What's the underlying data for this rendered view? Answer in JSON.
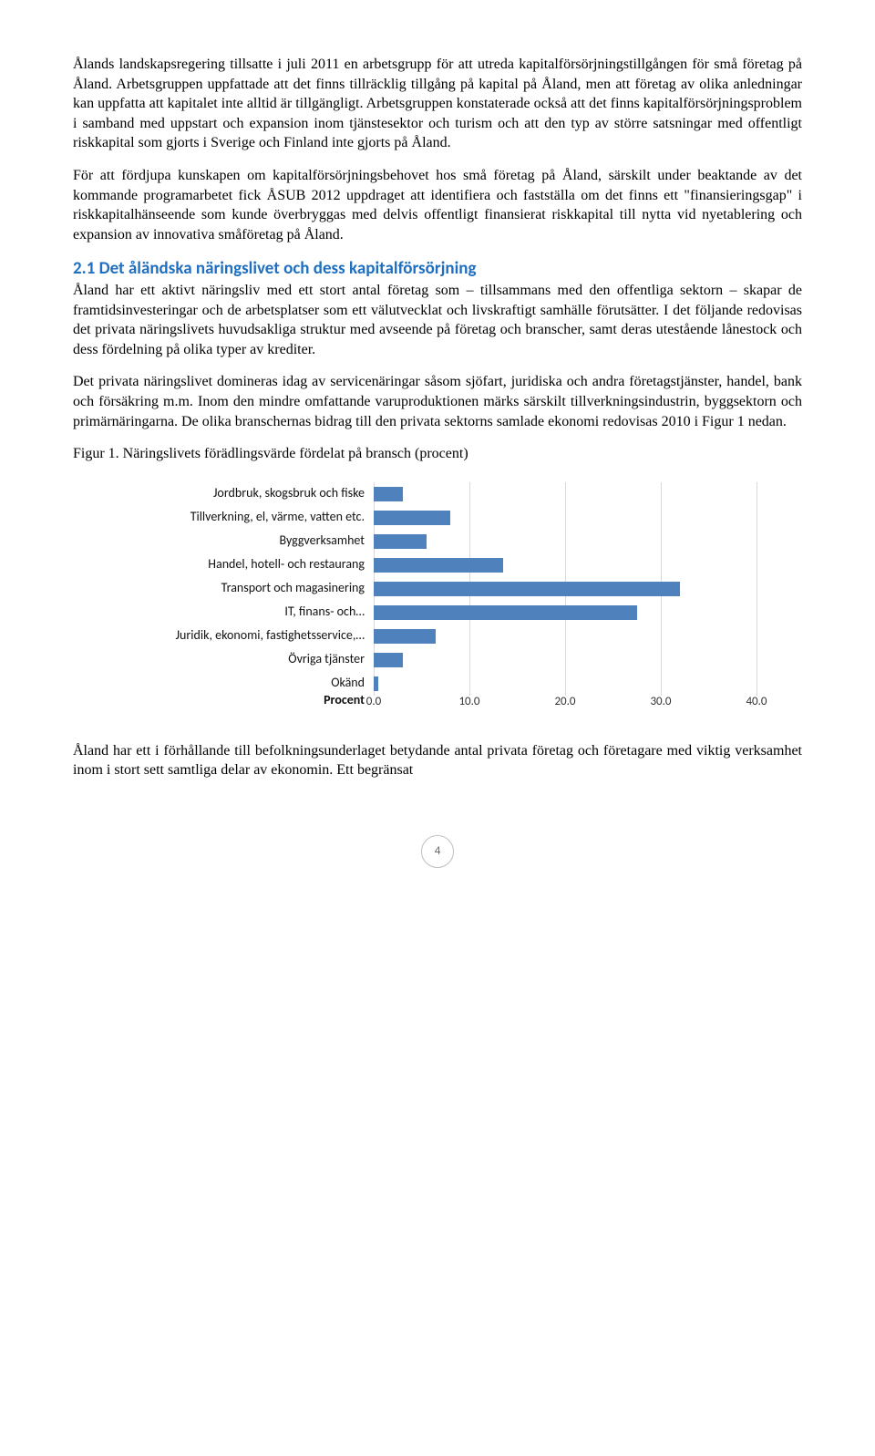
{
  "paragraphs": {
    "p1": "Ålands landskapsregering tillsatte i juli 2011 en arbetsgrupp för att utreda kapitalförsörjningstillgången för små företag på Åland. Arbetsgruppen uppfattade att det finns tillräcklig tillgång på kapital på Åland, men att företag av olika anledningar kan uppfatta att kapitalet inte alltid är tillgängligt. Arbetsgruppen konstaterade också att det finns kapitalförsörjningsproblem i samband med uppstart och expansion inom tjänstesektor och turism och att den typ av större satsningar med offentligt riskkapital som gjorts i Sverige och Finland inte gjorts på Åland.",
    "p2": "För att fördjupa kunskapen om kapitalförsörjningsbehovet hos små företag på Åland, särskilt under beaktande av det kommande programarbetet fick ÅSUB 2012 uppdraget att identifiera och fastställa om det finns ett \"finansieringsgap\" i riskkapitalhänseende som kunde överbryggas med delvis offentligt finansierat riskkapital till nytta vid nyetablering och expansion av innovativa småföretag på Åland.",
    "section_title": "2.1 Det åländska näringslivet och dess kapitalförsörjning",
    "p3": "Åland har ett aktivt näringsliv med ett stort antal företag som – tillsammans med den offentliga sektorn – skapar de framtidsinvesteringar och de arbetsplatser som ett välutvecklat och livskraftigt samhälle förutsätter. I det följande redovisas det privata näringslivets huvudsakliga struktur med avseende på företag och branscher, samt deras utestående lånestock och dess fördelning på olika typer av krediter.",
    "p4": "Det privata näringslivet domineras idag av servicenäringar såsom sjöfart, juridiska och andra företagstjänster, handel, bank och försäkring m.m. Inom den mindre omfattande varuproduktionen märks särskilt tillverkningsindustrin, byggsektorn och primärnäringarna. De olika branschernas bidrag till den privata sektorns samlade ekonomi redovisas 2010 i Figur 1 nedan.",
    "fig_title": "Figur 1. Näringslivets förädlingsvärde fördelat på bransch (procent)",
    "p5": "Åland har ett i förhållande till befolkningsunderlaget betydande antal privata företag och företagare med viktig verksamhet inom i stort sett samtliga delar av ekonomin. Ett begränsat"
  },
  "chart": {
    "type": "bar-horizontal",
    "categories": [
      "Jordbruk, skogsbruk och fiske",
      "Tillverkning, el, värme, vatten etc.",
      "Byggverksamhet",
      "Handel, hotell- och restaurang",
      "Transport och magasinering",
      "IT, finans- och…",
      "Juridik, ekonomi, fastighetsservice,…",
      "Övriga tjänster",
      "Okänd"
    ],
    "values": [
      3.0,
      8.0,
      5.5,
      13.5,
      32.0,
      27.5,
      6.5,
      3.0,
      0.5
    ],
    "bar_color": "#4f81bd",
    "grid_color": "#d9d9d9",
    "xlim": [
      0,
      40
    ],
    "tick_step": 10,
    "tick_labels": [
      "0.0",
      "10.0",
      "20.0",
      "30.0",
      "40.0"
    ],
    "axis_label": "Procent",
    "label_fontsize": 14,
    "tick_fontsize": 13
  },
  "page_number": "4"
}
